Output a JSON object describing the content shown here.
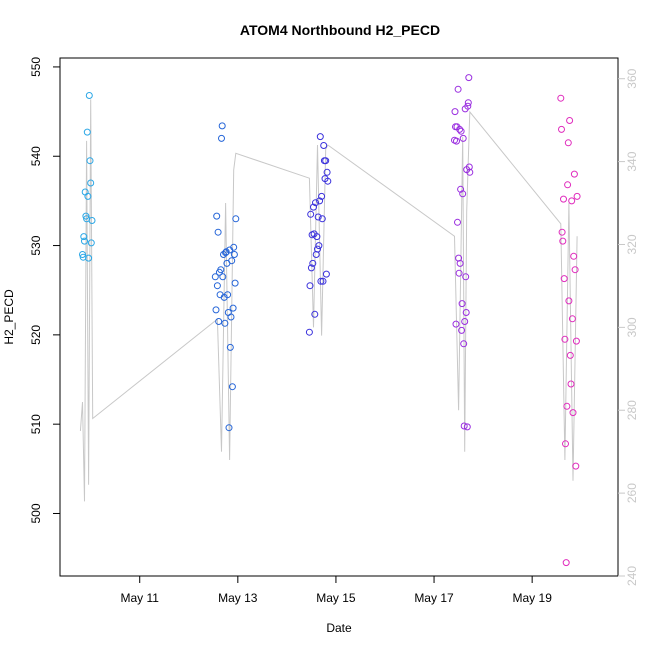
{
  "chart_data": {
    "type": "scatter",
    "title": "ATOM4 Northbound H2_PECD",
    "xlabel": "Date",
    "ylabel": "H2_PECD",
    "x_range": [
      "2018-05-09T09:00",
      "2018-05-20T18:00"
    ],
    "ylim": [
      493,
      551
    ],
    "ylim_right": [
      240,
      365
    ],
    "x_ticks": [
      {
        "label": "May 11",
        "date": "2018-05-11"
      },
      {
        "label": "May 13",
        "date": "2018-05-13"
      },
      {
        "label": "May 15",
        "date": "2018-05-15"
      },
      {
        "label": "May 17",
        "date": "2018-05-17"
      },
      {
        "label": "May 19",
        "date": "2018-05-19"
      }
    ],
    "y_ticks": [
      500,
      510,
      520,
      530,
      540,
      550
    ],
    "y_ticks_right": [
      240,
      260,
      280,
      300,
      320,
      340,
      360
    ],
    "grid": false,
    "colors": {
      "line": "#c8c8c8",
      "axis": "#000000",
      "right_axis": "#c8c8c8"
    },
    "groups": [
      {
        "color": "#2ba7e6",
        "points": [
          [
            "2018-05-09T20:00",
            529.0
          ],
          [
            "2018-05-09T20:20",
            528.7
          ],
          [
            "2018-05-09T20:40",
            531.0
          ],
          [
            "2018-05-09T21:00",
            530.5
          ],
          [
            "2018-05-09T21:20",
            536.0
          ],
          [
            "2018-05-09T21:40",
            533.3
          ],
          [
            "2018-05-09T22:00",
            533.0
          ],
          [
            "2018-05-09T22:20",
            542.7
          ],
          [
            "2018-05-09T22:40",
            535.5
          ],
          [
            "2018-05-09T23:00",
            528.6
          ],
          [
            "2018-05-09T23:20",
            546.8
          ],
          [
            "2018-05-09T23:40",
            539.5
          ],
          [
            "2018-05-10T00:00",
            537.0
          ],
          [
            "2018-05-10T00:20",
            530.3
          ],
          [
            "2018-05-10T00:40",
            532.8
          ]
        ]
      },
      {
        "color": "#2565d8",
        "points": [
          [
            "2018-05-12T13:00",
            526.5
          ],
          [
            "2018-05-12T13:20",
            522.8
          ],
          [
            "2018-05-12T13:40",
            533.3
          ],
          [
            "2018-05-12T14:00",
            525.5
          ],
          [
            "2018-05-12T14:20",
            531.5
          ],
          [
            "2018-05-12T14:40",
            521.5
          ],
          [
            "2018-05-12T15:00",
            527.0
          ],
          [
            "2018-05-12T15:20",
            524.5
          ],
          [
            "2018-05-12T15:40",
            527.3
          ],
          [
            "2018-05-12T16:00",
            542.0
          ],
          [
            "2018-05-12T16:20",
            543.4
          ],
          [
            "2018-05-12T16:40",
            526.5
          ],
          [
            "2018-05-12T17:00",
            529.0
          ],
          [
            "2018-05-12T17:20",
            524.2
          ],
          [
            "2018-05-12T17:40",
            521.3
          ],
          [
            "2018-05-12T18:00",
            529.2
          ],
          [
            "2018-05-12T18:20",
            529.3
          ],
          [
            "2018-05-12T18:40",
            528.0
          ],
          [
            "2018-05-12T19:00",
            524.5
          ],
          [
            "2018-05-12T19:20",
            522.5
          ],
          [
            "2018-05-12T19:40",
            509.6
          ],
          [
            "2018-05-12T20:00",
            529.5
          ],
          [
            "2018-05-12T20:20",
            518.6
          ],
          [
            "2018-05-12T20:40",
            522.0
          ],
          [
            "2018-05-12T21:00",
            528.3
          ],
          [
            "2018-05-12T21:20",
            514.2
          ],
          [
            "2018-05-12T21:40",
            523.0
          ],
          [
            "2018-05-12T22:00",
            529.8
          ],
          [
            "2018-05-12T22:20",
            529.0
          ],
          [
            "2018-05-12T22:40",
            525.8
          ],
          [
            "2018-05-12T23:00",
            533.0
          ]
        ]
      },
      {
        "color": "#3a31dc",
        "points": [
          [
            "2018-05-14T11:00",
            520.3
          ],
          [
            "2018-05-14T11:20",
            525.5
          ],
          [
            "2018-05-14T11:40",
            533.5
          ],
          [
            "2018-05-14T12:00",
            527.5
          ],
          [
            "2018-05-14T12:20",
            531.2
          ],
          [
            "2018-05-14T12:40",
            528.0
          ],
          [
            "2018-05-14T13:00",
            534.3
          ],
          [
            "2018-05-14T13:20",
            531.3
          ],
          [
            "2018-05-14T13:40",
            522.3
          ],
          [
            "2018-05-14T14:00",
            534.8
          ],
          [
            "2018-05-14T14:20",
            529.0
          ],
          [
            "2018-05-14T14:40",
            531.0
          ],
          [
            "2018-05-14T15:00",
            529.6
          ],
          [
            "2018-05-14T15:20",
            533.2
          ],
          [
            "2018-05-14T15:40",
            530.0
          ],
          [
            "2018-05-14T16:00",
            535.0
          ],
          [
            "2018-05-14T16:20",
            542.2
          ],
          [
            "2018-05-14T16:40",
            526.0
          ],
          [
            "2018-05-14T17:00",
            535.5
          ],
          [
            "2018-05-14T17:20",
            533.0
          ],
          [
            "2018-05-14T17:40",
            526.0
          ],
          [
            "2018-05-14T18:00",
            541.2
          ],
          [
            "2018-05-14T18:20",
            539.5
          ],
          [
            "2018-05-14T18:40",
            537.5
          ],
          [
            "2018-05-14T19:00",
            539.5
          ],
          [
            "2018-05-14T19:20",
            526.8
          ],
          [
            "2018-05-14T19:40",
            538.2
          ],
          [
            "2018-05-14T20:00",
            537.2
          ]
        ]
      },
      {
        "color": "#9a2ee0",
        "points": [
          [
            "2018-05-17T10:00",
            541.8
          ],
          [
            "2018-05-17T10:15",
            545.0
          ],
          [
            "2018-05-17T10:30",
            543.3
          ],
          [
            "2018-05-17T10:45",
            521.2
          ],
          [
            "2018-05-17T11:00",
            541.7
          ],
          [
            "2018-05-17T11:15",
            543.3
          ],
          [
            "2018-05-17T11:30",
            532.6
          ],
          [
            "2018-05-17T11:45",
            547.5
          ],
          [
            "2018-05-17T12:00",
            528.6
          ],
          [
            "2018-05-17T12:15",
            526.9
          ],
          [
            "2018-05-17T12:30",
            543.0
          ],
          [
            "2018-05-17T12:45",
            528.0
          ],
          [
            "2018-05-17T13:00",
            536.3
          ],
          [
            "2018-05-17T13:15",
            542.8
          ],
          [
            "2018-05-17T13:30",
            520.5
          ],
          [
            "2018-05-17T13:45",
            523.5
          ],
          [
            "2018-05-17T14:00",
            535.8
          ],
          [
            "2018-05-17T14:15",
            542.0
          ],
          [
            "2018-05-17T14:30",
            519.0
          ],
          [
            "2018-05-17T14:45",
            509.8
          ],
          [
            "2018-05-17T15:00",
            521.5
          ],
          [
            "2018-05-17T15:15",
            545.3
          ],
          [
            "2018-05-17T15:30",
            526.5
          ],
          [
            "2018-05-17T15:45",
            522.5
          ],
          [
            "2018-05-17T16:00",
            538.5
          ],
          [
            "2018-05-17T16:15",
            509.7
          ],
          [
            "2018-05-17T16:30",
            545.6
          ],
          [
            "2018-05-17T16:45",
            546.0
          ],
          [
            "2018-05-17T17:00",
            548.8
          ],
          [
            "2018-05-17T17:15",
            538.8
          ],
          [
            "2018-05-17T17:30",
            538.2
          ]
        ]
      },
      {
        "color": "#e02cbd",
        "points": [
          [
            "2018-05-19T14:00",
            546.5
          ],
          [
            "2018-05-19T14:20",
            543.0
          ],
          [
            "2018-05-19T14:40",
            531.5
          ],
          [
            "2018-05-19T15:00",
            530.5
          ],
          [
            "2018-05-19T15:20",
            535.2
          ],
          [
            "2018-05-19T15:40",
            526.3
          ],
          [
            "2018-05-19T16:00",
            519.5
          ],
          [
            "2018-05-19T16:20",
            507.8
          ],
          [
            "2018-05-19T16:40",
            494.5
          ],
          [
            "2018-05-19T17:00",
            512.0
          ],
          [
            "2018-05-19T17:20",
            536.8
          ],
          [
            "2018-05-19T17:40",
            541.5
          ],
          [
            "2018-05-19T18:00",
            523.8
          ],
          [
            "2018-05-19T18:20",
            544.0
          ],
          [
            "2018-05-19T18:40",
            517.7
          ],
          [
            "2018-05-19T19:00",
            514.5
          ],
          [
            "2018-05-19T19:20",
            535.0
          ],
          [
            "2018-05-19T19:40",
            521.8
          ],
          [
            "2018-05-19T20:00",
            511.3
          ],
          [
            "2018-05-19T20:20",
            528.8
          ],
          [
            "2018-05-19T20:40",
            538.0
          ],
          [
            "2018-05-19T21:00",
            527.3
          ],
          [
            "2018-05-19T21:20",
            505.3
          ],
          [
            "2018-05-19T21:40",
            519.3
          ],
          [
            "2018-05-19T22:00",
            535.5
          ]
        ]
      }
    ],
    "line_series": {
      "axis": "right",
      "anchors": [
        [
          "2018-05-09T19:00",
          275
        ],
        [
          "2018-05-09T20:00",
          282
        ],
        [
          "2018-05-09T21:00",
          258
        ],
        [
          "2018-05-09T22:00",
          345
        ],
        [
          "2018-05-09T23:00",
          262
        ],
        [
          "2018-05-10T00:00",
          355
        ],
        [
          "2018-05-10T01:00",
          278
        ],
        [
          "2018-05-12T14:00",
          302
        ],
        [
          "2018-05-12T16:00",
          270
        ],
        [
          "2018-05-12T18:00",
          330
        ],
        [
          "2018-05-12T20:00",
          268
        ],
        [
          "2018-05-12T22:00",
          338
        ],
        [
          "2018-05-12T23:00",
          342
        ],
        [
          "2018-05-14T11:00",
          336
        ],
        [
          "2018-05-14T13:00",
          300
        ],
        [
          "2018-05-14T15:00",
          344
        ],
        [
          "2018-05-14T17:00",
          298
        ],
        [
          "2018-05-14T19:00",
          343
        ],
        [
          "2018-05-14T20:00",
          344
        ],
        [
          "2018-05-17T10:00",
          322
        ],
        [
          "2018-05-17T12:00",
          280
        ],
        [
          "2018-05-17T14:00",
          346
        ],
        [
          "2018-05-17T15:00",
          270
        ],
        [
          "2018-05-17T16:00",
          328
        ],
        [
          "2018-05-17T17:30",
          352
        ],
        [
          "2018-05-19T14:00",
          325
        ],
        [
          "2018-05-19T16:00",
          268
        ],
        [
          "2018-05-19T18:00",
          330
        ],
        [
          "2018-05-19T20:00",
          263
        ],
        [
          "2018-05-19T22:00",
          322
        ]
      ]
    }
  }
}
